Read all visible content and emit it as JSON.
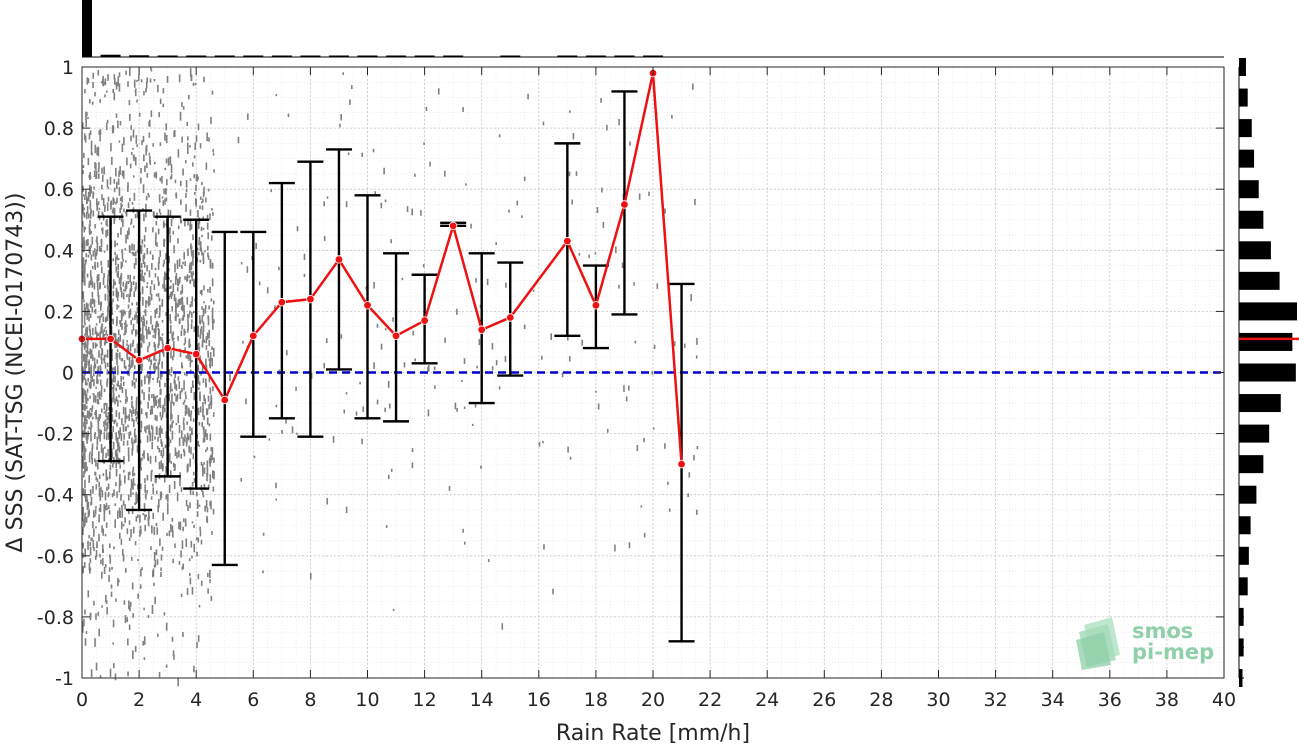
{
  "chart_data": {
    "type": "scatter",
    "xlabel": "Rain Rate [mm/h]",
    "ylabel": "Δ SSS (SAT-TSG (NCEI-0170743))",
    "xlim": [
      0,
      40
    ],
    "ylim": [
      -1,
      1
    ],
    "x_ticks": [
      "0",
      "2",
      "4",
      "6",
      "8",
      "10",
      "12",
      "14",
      "16",
      "18",
      "20",
      "22",
      "24",
      "26",
      "28",
      "30",
      "32",
      "34",
      "36",
      "38",
      "40"
    ],
    "y_ticks": [
      "1",
      "0.8",
      "0.6",
      "0.4",
      "0.2",
      "0",
      "-0.2",
      "-0.4",
      "-0.6",
      "-0.8",
      "-1"
    ],
    "grid": true,
    "zero_line": {
      "y": 0,
      "style": "dashed",
      "color": "#0000cc"
    },
    "mean_series": {
      "color": "#ee1111",
      "x": [
        0,
        1,
        2,
        3,
        4,
        5,
        6,
        7,
        8,
        9,
        10,
        11,
        12,
        13,
        14,
        15,
        17,
        18,
        19,
        20,
        21
      ],
      "mean": [
        0.11,
        0.11,
        0.04,
        0.08,
        0.06,
        -0.09,
        0.12,
        0.23,
        0.24,
        0.37,
        0.22,
        0.12,
        0.17,
        0.48,
        0.14,
        0.18,
        0.43,
        0.22,
        0.55,
        0.98,
        -0.3
      ],
      "upper": [
        null,
        0.51,
        0.53,
        0.51,
        0.5,
        0.46,
        0.46,
        0.62,
        0.69,
        0.73,
        0.58,
        0.39,
        0.32,
        0.49,
        0.39,
        0.36,
        0.75,
        0.35,
        0.92,
        null,
        0.29
      ],
      "lower": [
        null,
        -0.29,
        -0.45,
        -0.34,
        -0.38,
        -0.63,
        -0.21,
        -0.15,
        -0.21,
        0.01,
        -0.15,
        -0.16,
        0.03,
        0.48,
        -0.1,
        -0.01,
        0.12,
        0.08,
        0.19,
        null,
        -0.88
      ]
    },
    "top_histogram": {
      "color": "#000000",
      "x": [
        0,
        1,
        2,
        3,
        4,
        5,
        6,
        7,
        8,
        9,
        10,
        11,
        12,
        13,
        14,
        15,
        16,
        17,
        18,
        19,
        20,
        21
      ],
      "relative_counts": [
        1.0,
        0.04,
        0.03,
        0.02,
        0.02,
        0.015,
        0.01,
        0.01,
        0.01,
        0.01,
        0.01,
        0.01,
        0.01,
        0.01,
        0,
        0.01,
        0,
        0.01,
        0.01,
        0.005,
        0.005,
        0
      ]
    },
    "right_histogram": {
      "color": "#000000",
      "mean_marker_y": 0.11,
      "mean_marker_color": "#ee1111",
      "y": [
        1.0,
        0.9,
        0.8,
        0.7,
        0.6,
        0.5,
        0.4,
        0.3,
        0.2,
        0.1,
        0.0,
        -0.1,
        -0.2,
        -0.3,
        -0.4,
        -0.5,
        -0.6,
        -0.7,
        -0.8,
        -0.9,
        -1.0
      ],
      "relative_counts": [
        0.12,
        0.15,
        0.22,
        0.26,
        0.34,
        0.42,
        0.55,
        0.7,
        1.0,
        0.92,
        0.98,
        0.72,
        0.52,
        0.42,
        0.3,
        0.2,
        0.17,
        0.15,
        0.08,
        0.08,
        0.06
      ]
    },
    "scatter_cloud": {
      "color": "#808080",
      "dense_x_range": [
        0,
        4.6
      ]
    }
  },
  "logo": {
    "line1": "smos",
    "line2": "pi-mep"
  }
}
